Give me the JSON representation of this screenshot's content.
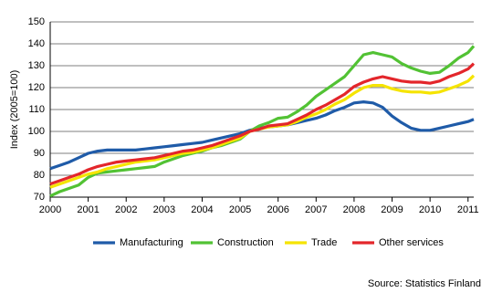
{
  "chart_data": {
    "type": "line",
    "y_label": "Index (2005=100)",
    "source": "Source: Statistics Finland",
    "x": [
      2000,
      2000.25,
      2000.5,
      2000.75,
      2001,
      2001.25,
      2001.5,
      2001.75,
      2002,
      2002.25,
      2002.5,
      2002.75,
      2003,
      2003.25,
      2003.5,
      2003.75,
      2004,
      2004.25,
      2004.5,
      2004.75,
      2005,
      2005.25,
      2005.5,
      2005.75,
      2006,
      2006.25,
      2006.5,
      2006.75,
      2007,
      2007.25,
      2007.5,
      2007.75,
      2008,
      2008.25,
      2008.5,
      2008.75,
      2009,
      2009.25,
      2009.5,
      2009.75,
      2010,
      2010.25,
      2010.5,
      2010.75,
      2011,
      2011.15
    ],
    "series": [
      {
        "name": "Manufacturing",
        "color": "#1f5ba8",
        "values": [
          83,
          84.5,
          86,
          88,
          90,
          91,
          91.5,
          91.5,
          91.5,
          91.5,
          92,
          92.5,
          93,
          93.5,
          94,
          94.5,
          95,
          96,
          97,
          98,
          99,
          100.5,
          101.5,
          102,
          102.5,
          103,
          104,
          105,
          106,
          107.5,
          109.5,
          111,
          113,
          113.5,
          113,
          111,
          107,
          104,
          101.5,
          100.5,
          100.5,
          101.5,
          102.5,
          103.5,
          104.5,
          105.5
        ]
      },
      {
        "name": "Construction",
        "color": "#52c234",
        "values": [
          70.5,
          72.5,
          74,
          75.5,
          79,
          81,
          81.5,
          82,
          82.5,
          83,
          83.5,
          84,
          86,
          87.5,
          89,
          90,
          91,
          92.5,
          93.5,
          95,
          96.5,
          100,
          102.5,
          104,
          106,
          106.5,
          109,
          112,
          116,
          119,
          122,
          125,
          130,
          135,
          136,
          135,
          134,
          131,
          129,
          127.5,
          126.5,
          127,
          130,
          133.5,
          136,
          139
        ]
      },
      {
        "name": "Trade",
        "color": "#f5e400",
        "values": [
          74.5,
          76,
          77.5,
          79,
          80.5,
          81.5,
          83,
          84,
          85,
          86,
          86.5,
          87,
          88,
          89,
          90,
          90.5,
          91.5,
          92.5,
          94,
          95.5,
          97,
          100,
          101,
          102,
          102.5,
          103,
          104.5,
          106.5,
          108,
          110,
          112.5,
          114.5,
          117.5,
          120,
          121,
          121,
          119.5,
          118.5,
          118,
          118,
          117.5,
          118,
          119.5,
          121,
          123,
          125.5
        ]
      },
      {
        "name": "Other services",
        "color": "#e3262b",
        "values": [
          76,
          77.5,
          79,
          80.5,
          82.5,
          84,
          85,
          86,
          86.5,
          87,
          87.5,
          88,
          89,
          90,
          91,
          91.5,
          92.5,
          93.5,
          95,
          96.5,
          98,
          100,
          101,
          102.5,
          103,
          103.5,
          105.5,
          107.5,
          110,
          112,
          114.5,
          117,
          120.5,
          122.5,
          124,
          125,
          124,
          123,
          122.5,
          122.5,
          122,
          123,
          125,
          126.5,
          128.5,
          131
        ]
      }
    ],
    "xlim": [
      2000,
      2011.15
    ],
    "xticks": [
      2000,
      2001,
      2002,
      2003,
      2004,
      2005,
      2006,
      2007,
      2008,
      2009,
      2010,
      2011
    ],
    "ylim": [
      70,
      150
    ],
    "yticks": [
      70,
      80,
      90,
      100,
      110,
      120,
      130,
      140,
      150
    ],
    "grid": true,
    "legend": "bottom"
  }
}
